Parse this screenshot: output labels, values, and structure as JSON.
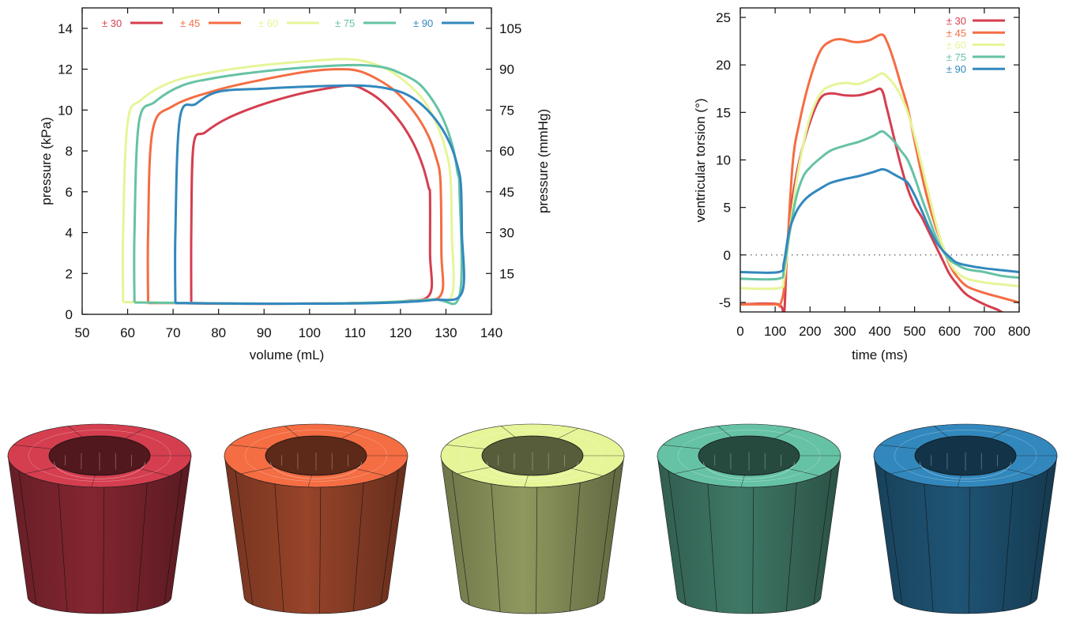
{
  "chart_data": [
    {
      "type": "line",
      "xlabel": "volume (mL)",
      "ylabel": "pressure (kPa)",
      "y2label": "pressure (mmHg)",
      "xlim": [
        50,
        140
      ],
      "ylim": [
        0,
        15
      ],
      "xticks": [
        "50",
        "60",
        "70",
        "80",
        "90",
        "100",
        "110",
        "120",
        "130",
        "140"
      ],
      "yticks": [
        "0",
        "2",
        "4",
        "6",
        "8",
        "10",
        "12",
        "14"
      ],
      "y2ticks": [
        "15",
        "30",
        "45",
        "60",
        "75",
        "90",
        "105"
      ],
      "legend_position": "top",
      "series": [
        {
          "name": "± 30",
          "color": "#d53e4f",
          "x": [
            74,
            74,
            74.5,
            77,
            82,
            90,
            98,
            105,
            109,
            112,
            116,
            120,
            123,
            125,
            126.2,
            126.5,
            126.5,
            126.5,
            121,
            110,
            95,
            85,
            75,
            74
          ],
          "y": [
            0.55,
            4,
            8.3,
            8.9,
            9.6,
            10.3,
            10.8,
            11.1,
            11.2,
            11.0,
            10.4,
            9.4,
            8.3,
            7.2,
            6.2,
            5.8,
            3,
            1.0,
            0.65,
            0.55,
            0.52,
            0.52,
            0.55,
            0.55
          ]
        },
        {
          "name": "± 45",
          "color": "#f46d43",
          "x": [
            64.5,
            64.5,
            65.5,
            70,
            80,
            90,
            100,
            107,
            111,
            115,
            119,
            123,
            126,
            127.8,
            128.8,
            129,
            129,
            124,
            110,
            95,
            80,
            70,
            64.5
          ],
          "y": [
            0.55,
            4,
            9.0,
            10.2,
            11.0,
            11.5,
            11.9,
            12.0,
            11.9,
            11.5,
            10.9,
            9.9,
            8.8,
            7.7,
            6.5,
            3,
            1.0,
            0.68,
            0.55,
            0.52,
            0.52,
            0.55,
            0.55
          ]
        },
        {
          "name": "± 60",
          "color": "#e6f598",
          "x": [
            59,
            59,
            60,
            63,
            70,
            80,
            90,
            100,
            107,
            112,
            117,
            121,
            125,
            128,
            130,
            131,
            131.3,
            131.3,
            126,
            110,
            90,
            70,
            59
          ],
          "y": [
            0.6,
            4,
            9.4,
            10.5,
            11.4,
            11.9,
            12.2,
            12.4,
            12.5,
            12.4,
            12.0,
            11.4,
            10.5,
            9.3,
            8.0,
            6.7,
            4,
            0.95,
            0.72,
            0.55,
            0.52,
            0.56,
            0.6
          ]
        },
        {
          "name": "± 75",
          "color": "#66c2a5",
          "x": [
            61.5,
            61.5,
            62.5,
            66,
            72,
            80,
            90,
            100,
            110,
            116,
            120,
            124,
            127,
            129.5,
            131.5,
            132.5,
            133,
            133,
            127,
            110,
            90,
            75,
            61.5
          ],
          "y": [
            0.58,
            4,
            9.4,
            10.4,
            11.2,
            11.6,
            11.9,
            12.1,
            12.2,
            12.1,
            11.8,
            11.3,
            10.5,
            9.5,
            8.2,
            7.0,
            6.0,
            0.95,
            0.72,
            0.55,
            0.52,
            0.55,
            0.58
          ]
        },
        {
          "name": "± 90",
          "color": "#3288bd",
          "x": [
            70.5,
            70.5,
            71.5,
            75,
            80,
            90,
            100,
            110,
            116,
            121,
            125,
            128.5,
            131,
            132.5,
            133.3,
            133.5,
            133.5,
            127,
            115,
            100,
            85,
            70.5
          ],
          "y": [
            0.55,
            4,
            9.6,
            10.3,
            10.9,
            11.05,
            11.15,
            11.2,
            11.1,
            10.8,
            10.2,
            9.3,
            8.3,
            7.3,
            6.3,
            4,
            1.05,
            0.7,
            0.55,
            0.52,
            0.52,
            0.55
          ]
        }
      ]
    },
    {
      "type": "line",
      "xlabel": "time (ms)",
      "ylabel": "ventricular torsion (°)",
      "xlim": [
        0,
        800
      ],
      "ylim": [
        -6,
        26
      ],
      "xticks": [
        "0",
        "100",
        "200",
        "300",
        "400",
        "500",
        "600",
        "700",
        "800"
      ],
      "yticks": [
        "-5",
        "0",
        "5",
        "10",
        "15",
        "20",
        "25"
      ],
      "zero_line": "dotted",
      "legend_position": "top-right",
      "series": [
        {
          "name": "± 30",
          "color": "#d53e4f",
          "x": [
            0,
            110,
            125,
            135,
            150,
            170,
            200,
            230,
            260,
            300,
            340,
            380,
            405,
            420,
            440,
            460,
            480,
            500,
            520,
            540,
            560,
            580,
            600,
            620,
            650,
            700,
            740,
            770
          ],
          "y": [
            -5.2,
            -5.2,
            -6.5,
            1,
            6,
            10,
            14,
            16.5,
            17,
            16.8,
            16.8,
            17.2,
            17.4,
            15.5,
            12.5,
            9.5,
            7,
            5.2,
            4,
            2.5,
            1,
            -0.5,
            -2,
            -3,
            -4.2,
            -5.2,
            -5.8,
            -6.5
          ]
        },
        {
          "name": "± 45",
          "color": "#f46d43",
          "x": [
            0,
            100,
            115,
            130,
            150,
            170,
            200,
            230,
            260,
            290,
            330,
            370,
            405,
            420,
            440,
            460,
            480,
            500,
            520,
            540,
            560,
            580,
            600,
            620,
            650,
            700,
            750,
            800
          ],
          "y": [
            -5.2,
            -5.2,
            -5.2,
            -2,
            9.5,
            14,
            18.5,
            21.5,
            22.5,
            22.7,
            22.4,
            22.6,
            23.2,
            22.5,
            20.5,
            18,
            15.5,
            12,
            8.5,
            5.5,
            3,
            1,
            -1,
            -2.2,
            -3.3,
            -4,
            -4.5,
            -5
          ]
        },
        {
          "name": "± 60",
          "color": "#e6f598",
          "x": [
            0,
            110,
            125,
            140,
            160,
            180,
            200,
            230,
            260,
            300,
            340,
            380,
            405,
            420,
            440,
            460,
            480,
            500,
            520,
            540,
            560,
            580,
            600,
            620,
            650,
            700,
            750,
            800
          ],
          "y": [
            -3.5,
            -3.5,
            -2.5,
            2,
            7.5,
            11.5,
            14.5,
            17,
            17.8,
            18.1,
            18.0,
            18.6,
            19.1,
            18.8,
            18.0,
            16.8,
            15,
            12.5,
            9.5,
            6.5,
            3.5,
            1,
            -0.8,
            -1.8,
            -2.5,
            -2.9,
            -3.1,
            -3.3
          ]
        },
        {
          "name": "± 75",
          "color": "#66c2a5",
          "x": [
            0,
            110,
            125,
            140,
            160,
            180,
            200,
            230,
            260,
            300,
            340,
            380,
            405,
            420,
            440,
            460,
            480,
            500,
            520,
            540,
            560,
            580,
            600,
            620,
            650,
            700,
            750,
            800
          ],
          "y": [
            -2.5,
            -2.5,
            -1.5,
            2,
            6,
            8.2,
            9.2,
            10.2,
            11,
            11.5,
            11.9,
            12.5,
            13.0,
            12.7,
            12.0,
            11.0,
            10,
            8.2,
            6,
            4,
            2,
            0.5,
            -0.5,
            -1,
            -1.5,
            -1.8,
            -2.2,
            -2.4
          ]
        },
        {
          "name": "± 90",
          "color": "#3288bd",
          "x": [
            0,
            110,
            125,
            140,
            160,
            180,
            200,
            230,
            260,
            300,
            340,
            380,
            405,
            420,
            440,
            460,
            480,
            500,
            520,
            540,
            560,
            580,
            600,
            620,
            650,
            700,
            750,
            800
          ],
          "y": [
            -1.8,
            -1.8,
            -0.8,
            2.5,
            4.5,
            5.6,
            6.3,
            7.0,
            7.6,
            8.0,
            8.3,
            8.7,
            9.0,
            8.9,
            8.5,
            8.1,
            7.6,
            6.3,
            4.7,
            3,
            1.5,
            0.5,
            -0.2,
            -0.8,
            -1.1,
            -1.4,
            -1.6,
            -1.8
          ]
        }
      ]
    }
  ],
  "models": [
    {
      "name": "cylinder-30",
      "color": "#d53e4f"
    },
    {
      "name": "cylinder-45",
      "color": "#f46d43"
    },
    {
      "name": "cylinder-60",
      "color": "#e6f598"
    },
    {
      "name": "cylinder-75",
      "color": "#66c2a5"
    },
    {
      "name": "cylinder-90",
      "color": "#3288bd"
    }
  ]
}
